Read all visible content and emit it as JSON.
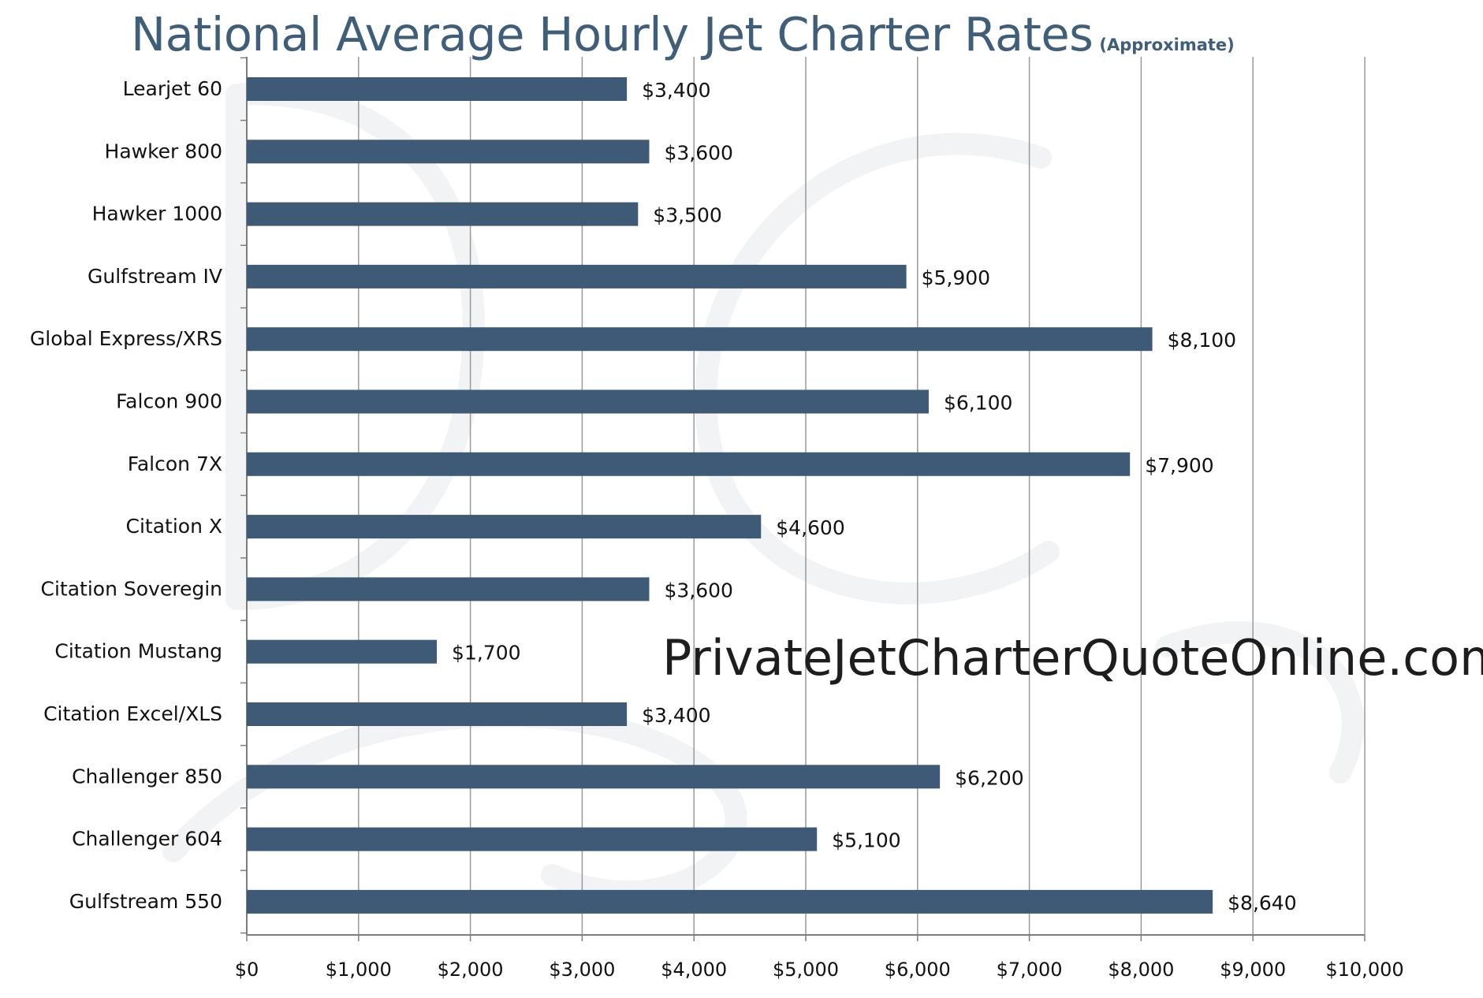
{
  "chart_data": {
    "type": "bar",
    "orientation": "horizontal",
    "title": "National Average Hourly Jet Charter Rates",
    "subtitle": "(Approximate)",
    "categories": [
      "Learjet 60",
      "Hawker 800",
      "Hawker 1000",
      "Gulfstream IV",
      "Global Express/XRS",
      "Falcon 900",
      "Falcon 7X",
      "Citation X",
      "Citation Soveregin",
      "Citation Mustang",
      "Citation Excel/XLS",
      "Challenger 850",
      "Challenger 604",
      "Gulfstream 550"
    ],
    "values": [
      3400,
      3600,
      3500,
      5900,
      8100,
      6100,
      7900,
      4600,
      3600,
      1700,
      3400,
      6200,
      5100,
      8640
    ],
    "data_labels": [
      "$3,400",
      "$3,600",
      "$3,500",
      "$5,900",
      "$8,100",
      "$6,100",
      "$7,900",
      "$4,600",
      "$3,600",
      "$1,700",
      "$3,400",
      "$6,200",
      "$5,100",
      "$8,640"
    ],
    "xlim": [
      0,
      10000
    ],
    "x_ticks": [
      0,
      1000,
      2000,
      3000,
      4000,
      5000,
      6000,
      7000,
      8000,
      9000,
      10000
    ],
    "x_tick_labels": [
      "$0",
      "$1,000",
      "$2,000",
      "$3,000",
      "$4,000",
      "$5,000",
      "$6,000",
      "$7,000",
      "$8,000",
      "$9,000",
      "$10,000"
    ],
    "xlabel": "",
    "ylabel": "",
    "grid": "vertical",
    "legend": "none",
    "bar_color": "#3e5a77",
    "grid_color": "#9a9a9a",
    "annotation": "PrivateJetCharterQuoteOnline.com"
  }
}
